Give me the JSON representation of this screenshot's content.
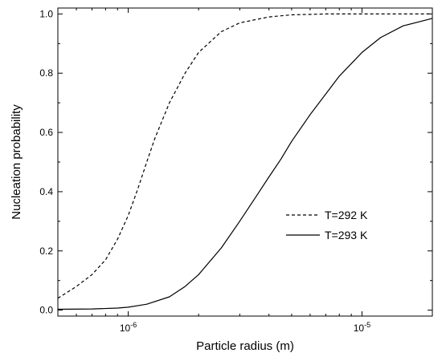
{
  "chart_data": {
    "type": "line",
    "title": "",
    "xlabel": "Particle radius (m)",
    "ylabel": "Nucleation probability",
    "x_scale": "log",
    "xlim": [
      5e-07,
      2e-05
    ],
    "ylim": [
      -0.02,
      1.02
    ],
    "x_ticks": [
      {
        "value": 1e-06,
        "base": "10",
        "exp": "-6"
      },
      {
        "value": 1e-05,
        "base": "10",
        "exp": "-5"
      }
    ],
    "y_ticks": [
      {
        "value": 0.0,
        "label": "0.0"
      },
      {
        "value": 0.2,
        "label": "0.2"
      },
      {
        "value": 0.4,
        "label": "0.4"
      },
      {
        "value": 0.6,
        "label": "0.6"
      },
      {
        "value": 0.8,
        "label": "0.8"
      },
      {
        "value": 1.0,
        "label": "1.0"
      }
    ],
    "grid": false,
    "legend_position": "lower-right",
    "series": [
      {
        "name": "T=292 K",
        "style": "dashed",
        "color": "#000000",
        "points": [
          [
            5e-07,
            0.04
          ],
          [
            6e-07,
            0.08
          ],
          [
            7e-07,
            0.12
          ],
          [
            8e-07,
            0.17
          ],
          [
            9e-07,
            0.24
          ],
          [
            1e-06,
            0.32
          ],
          [
            1.1e-06,
            0.41
          ],
          [
            1.2e-06,
            0.5
          ],
          [
            1.3e-06,
            0.58
          ],
          [
            1.5e-06,
            0.7
          ],
          [
            1.75e-06,
            0.8
          ],
          [
            2e-06,
            0.87
          ],
          [
            2.5e-06,
            0.94
          ],
          [
            3e-06,
            0.97
          ],
          [
            4e-06,
            0.99
          ],
          [
            5e-06,
            0.997
          ],
          [
            7e-06,
            1.0
          ],
          [
            1e-05,
            1.0
          ],
          [
            2e-05,
            1.0
          ]
        ]
      },
      {
        "name": "T=293 K",
        "style": "solid",
        "color": "#000000",
        "points": [
          [
            5e-07,
            0.003
          ],
          [
            7e-07,
            0.004
          ],
          [
            9e-07,
            0.007
          ],
          [
            1e-06,
            0.01
          ],
          [
            1.2e-06,
            0.02
          ],
          [
            1.5e-06,
            0.045
          ],
          [
            1.75e-06,
            0.08
          ],
          [
            2e-06,
            0.12
          ],
          [
            2.5e-06,
            0.21
          ],
          [
            3e-06,
            0.3
          ],
          [
            3.5e-06,
            0.38
          ],
          [
            4e-06,
            0.45
          ],
          [
            4.5e-06,
            0.51
          ],
          [
            5e-06,
            0.57
          ],
          [
            6e-06,
            0.66
          ],
          [
            7e-06,
            0.73
          ],
          [
            8e-06,
            0.79
          ],
          [
            1e-05,
            0.87
          ],
          [
            1.2e-05,
            0.92
          ],
          [
            1.5e-05,
            0.96
          ],
          [
            2e-05,
            0.985
          ]
        ]
      }
    ]
  }
}
